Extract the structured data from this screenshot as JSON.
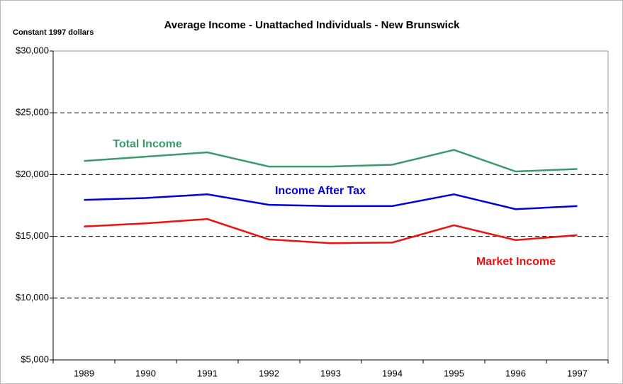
{
  "chart_data": {
    "type": "line",
    "title": "Average Income - Unattached Individuals - New Brunswick",
    "y_axis_label": "Constant 1997 dollars",
    "categories": [
      "1989",
      "1990",
      "1991",
      "1992",
      "1993",
      "1994",
      "1995",
      "1996",
      "1997"
    ],
    "series": [
      {
        "name": "Total Income",
        "color": "#3a9a6a",
        "values": [
          21100,
          21450,
          21800,
          20650,
          20650,
          20800,
          22000,
          20250,
          20450
        ]
      },
      {
        "name": "Income After Tax",
        "color": "#0000dd",
        "values": [
          17950,
          18100,
          18400,
          17550,
          17450,
          17450,
          18400,
          17200,
          17450
        ]
      },
      {
        "name": "Market Income",
        "color": "#ee1111",
        "values": [
          15800,
          16050,
          16400,
          14750,
          14450,
          14500,
          15900,
          14700,
          15100
        ]
      }
    ],
    "ylim": [
      5000,
      30000
    ],
    "yticks": [
      {
        "value": 5000,
        "label": "$5,000"
      },
      {
        "value": 10000,
        "label": "$10,000"
      },
      {
        "value": 15000,
        "label": "$15,000"
      },
      {
        "value": 20000,
        "label": "$20,000"
      },
      {
        "value": 25000,
        "label": "$25,000"
      },
      {
        "value": 30000,
        "label": "$30,000"
      }
    ],
    "grid": true
  }
}
